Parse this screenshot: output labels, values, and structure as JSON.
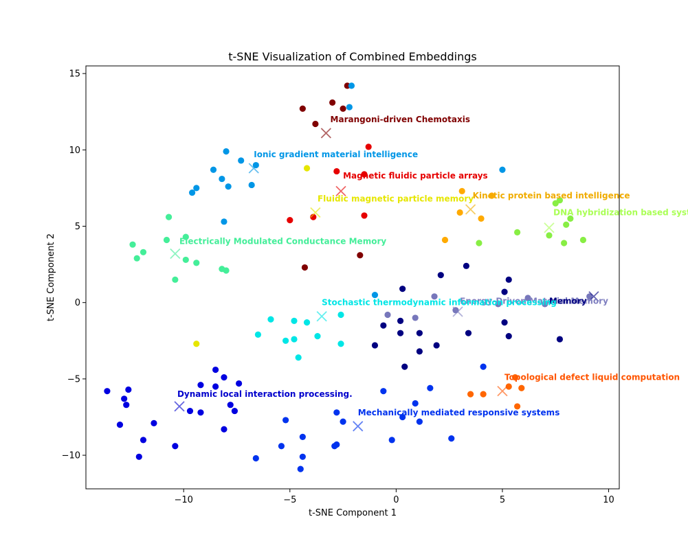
{
  "chart_data": {
    "type": "scatter",
    "title": "t-SNE Visualization of Combined Embeddings",
    "xlabel": "t-SNE Component 1",
    "ylabel": "t-SNE Component 2",
    "xlim": [
      -14.6,
      10.5
    ],
    "ylim": [
      -12.2,
      15.5
    ],
    "xticks": [
      -10,
      -5,
      0,
      5,
      10
    ],
    "yticks": [
      -10,
      -5,
      0,
      5,
      10,
      15
    ],
    "grid": false,
    "legend": "none",
    "clusters": [
      {
        "name": "Marangoni-driven Chemotaxis",
        "color": "#800000",
        "point_color": "#800000",
        "centroid": [
          -3.3,
          11.1
        ],
        "label_at": [
          -3.1,
          12.0
        ],
        "points": [
          [
            -4.4,
            12.7
          ],
          [
            -3.0,
            13.1
          ],
          [
            -2.3,
            14.2
          ],
          [
            -3.8,
            11.7
          ],
          [
            -2.5,
            12.7
          ],
          [
            -4.3,
            2.3
          ],
          [
            -1.7,
            3.1
          ]
        ]
      },
      {
        "name": "Ionic gradient material intelligence",
        "color": "#0096e6",
        "point_color": "#0096e6",
        "centroid": [
          -6.7,
          8.8
        ],
        "label_at": [
          -6.7,
          9.7
        ],
        "points": [
          [
            -2.1,
            14.2
          ],
          [
            -2.2,
            12.8
          ],
          [
            -8.0,
            9.9
          ],
          [
            -7.3,
            9.3
          ],
          [
            -6.6,
            9.0
          ],
          [
            -8.6,
            8.7
          ],
          [
            -8.2,
            8.1
          ],
          [
            -7.9,
            7.6
          ],
          [
            -9.4,
            7.5
          ],
          [
            -9.6,
            7.2
          ],
          [
            -6.8,
            7.7
          ],
          [
            -8.1,
            5.3
          ],
          [
            5.0,
            8.7
          ],
          [
            -1.0,
            0.5
          ]
        ]
      },
      {
        "name": "Magnetic fluidic particle arrays",
        "color": "#e60000",
        "point_color": "#e60000",
        "centroid": [
          -2.6,
          7.3
        ],
        "label_at": [
          -2.5,
          8.3
        ],
        "points": [
          [
            -1.3,
            10.2
          ],
          [
            -2.8,
            8.6
          ],
          [
            -1.5,
            8.4
          ],
          [
            -5.0,
            5.4
          ],
          [
            -3.9,
            5.6
          ],
          [
            -1.5,
            5.7
          ]
        ]
      },
      {
        "name": "Fluidic magnetic particle memory",
        "color": "#e6e600",
        "point_color": "#e6e600",
        "centroid": [
          -3.8,
          5.9
        ],
        "label_at": [
          -3.7,
          6.8
        ],
        "points": [
          [
            -4.2,
            8.8
          ],
          [
            -9.4,
            -2.7
          ]
        ]
      },
      {
        "name": "Kinetic protein based intelligence",
        "color": "#f0ac00",
        "point_color": "#ffaa00",
        "centroid": [
          3.5,
          6.1
        ],
        "label_at": [
          3.6,
          7.0
        ],
        "points": [
          [
            3.1,
            7.3
          ],
          [
            4.5,
            7.0
          ],
          [
            3.0,
            5.9
          ],
          [
            4.0,
            5.5
          ],
          [
            2.3,
            4.1
          ]
        ]
      },
      {
        "name": "DNA hybridization based systems",
        "color": "#aaff55",
        "point_color": "#88ee44",
        "centroid": [
          7.2,
          4.9
        ],
        "label_at": [
          7.4,
          5.9
        ],
        "points": [
          [
            7.5,
            6.5
          ],
          [
            7.7,
            6.7
          ],
          [
            8.2,
            5.5
          ],
          [
            8.0,
            5.1
          ],
          [
            7.2,
            4.4
          ],
          [
            5.7,
            4.6
          ],
          [
            7.9,
            3.9
          ],
          [
            8.8,
            4.1
          ],
          [
            3.9,
            3.9
          ]
        ]
      },
      {
        "name": "Electrically Modulated Conductance Memory",
        "color": "#44ee99",
        "point_color": "#44ee99",
        "centroid": [
          -10.4,
          3.2
        ],
        "label_at": [
          -10.2,
          4.0
        ],
        "points": [
          [
            -10.7,
            5.6
          ],
          [
            -9.9,
            4.3
          ],
          [
            -10.8,
            4.1
          ],
          [
            -12.4,
            3.8
          ],
          [
            -11.9,
            3.3
          ],
          [
            -12.2,
            2.9
          ],
          [
            -9.9,
            2.8
          ],
          [
            -9.4,
            2.6
          ],
          [
            -8.2,
            2.2
          ],
          [
            -8.0,
            2.1
          ],
          [
            -10.4,
            1.5
          ]
        ]
      },
      {
        "name": "Energy-Driven Material Memory",
        "color": "#8080c0",
        "point_color": "#7777bb",
        "centroid": [
          2.9,
          -0.6
        ],
        "label_at": [
          3.0,
          0.1
        ],
        "points": [
          [
            1.8,
            0.4
          ],
          [
            -0.4,
            -0.8
          ],
          [
            0.9,
            -1.0
          ],
          [
            2.8,
            -0.5
          ],
          [
            4.8,
            -0.1
          ],
          [
            6.2,
            0.3
          ],
          [
            7.0,
            -0.1
          ],
          [
            9.1,
            0.4
          ]
        ]
      },
      {
        "name": "Memory",
        "color": "#000080",
        "point_color": "#000080",
        "centroid": [
          9.3,
          0.4
        ],
        "label_at": [
          7.2,
          0.1
        ],
        "points": [
          [
            3.3,
            2.4
          ],
          [
            2.1,
            1.8
          ],
          [
            5.3,
            1.5
          ],
          [
            0.3,
            0.9
          ],
          [
            5.1,
            0.7
          ],
          [
            0.2,
            -1.2
          ],
          [
            -0.6,
            -1.5
          ],
          [
            5.1,
            -1.3
          ],
          [
            3.4,
            -2.0
          ],
          [
            0.2,
            -2.0
          ],
          [
            1.1,
            -2.0
          ],
          [
            5.3,
            -2.2
          ],
          [
            7.7,
            -2.4
          ],
          [
            -1.0,
            -2.8
          ],
          [
            1.9,
            -2.8
          ],
          [
            1.1,
            -3.2
          ],
          [
            0.4,
            -4.2
          ]
        ]
      },
      {
        "name": "Stochastic thermodynamic information processing",
        "color": "#00e6e6",
        "point_color": "#00e6e6",
        "centroid": [
          -3.5,
          -0.9
        ],
        "label_at": [
          -3.5,
          0.0
        ],
        "points": [
          [
            -2.6,
            -0.8
          ],
          [
            -5.9,
            -1.1
          ],
          [
            -4.8,
            -1.2
          ],
          [
            -4.2,
            -1.3
          ],
          [
            -6.5,
            -2.1
          ],
          [
            -3.7,
            -2.2
          ],
          [
            -5.2,
            -2.5
          ],
          [
            -4.8,
            -2.4
          ],
          [
            -2.6,
            -2.7
          ],
          [
            -4.6,
            -3.6
          ]
        ]
      },
      {
        "name": "Topological defect liquid computation",
        "color": "#ff5500",
        "point_color": "#ff6600",
        "centroid": [
          5.0,
          -5.8
        ],
        "label_at": [
          5.1,
          -4.9
        ],
        "points": [
          [
            5.6,
            -4.9
          ],
          [
            5.3,
            -5.5
          ],
          [
            5.9,
            -5.6
          ],
          [
            3.5,
            -6.0
          ],
          [
            4.1,
            -6.0
          ],
          [
            5.7,
            -6.8
          ]
        ]
      },
      {
        "name": "Dynamic local interaction processing.",
        "color": "#0000cc",
        "point_color": "#0000e0",
        "centroid": [
          -10.2,
          -6.8
        ],
        "label_at": [
          -10.3,
          -6.0
        ],
        "points": [
          [
            -13.6,
            -5.8
          ],
          [
            -12.6,
            -5.7
          ],
          [
            -12.8,
            -6.3
          ],
          [
            -12.7,
            -6.7
          ],
          [
            -13.0,
            -8.0
          ],
          [
            -11.4,
            -7.9
          ],
          [
            -11.9,
            -9.0
          ],
          [
            -12.1,
            -10.1
          ],
          [
            -10.4,
            -9.4
          ],
          [
            -9.2,
            -5.4
          ],
          [
            -8.5,
            -5.5
          ],
          [
            -8.5,
            -4.4
          ],
          [
            -8.1,
            -4.9
          ],
          [
            -7.4,
            -5.3
          ],
          [
            -9.7,
            -7.1
          ],
          [
            -9.2,
            -7.2
          ],
          [
            -7.8,
            -6.7
          ],
          [
            -7.6,
            -7.1
          ],
          [
            -8.1,
            -8.3
          ]
        ]
      },
      {
        "name": "Mechanically mediated responsive systems",
        "color": "#0033ee",
        "point_color": "#0033ee",
        "centroid": [
          -1.8,
          -8.1
        ],
        "label_at": [
          -1.8,
          -7.2
        ],
        "points": [
          [
            4.1,
            -4.2
          ],
          [
            1.6,
            -5.6
          ],
          [
            -0.6,
            -5.8
          ],
          [
            0.9,
            -6.6
          ],
          [
            -2.8,
            -7.2
          ],
          [
            -2.5,
            -7.8
          ],
          [
            -5.2,
            -7.7
          ],
          [
            0.3,
            -7.5
          ],
          [
            1.1,
            -7.8
          ],
          [
            -4.4,
            -8.8
          ],
          [
            -2.9,
            -9.4
          ],
          [
            -2.8,
            -9.3
          ],
          [
            -0.2,
            -9.0
          ],
          [
            2.6,
            -8.9
          ],
          [
            -5.4,
            -9.4
          ],
          [
            -4.4,
            -10.1
          ],
          [
            -6.6,
            -10.2
          ],
          [
            -4.5,
            -10.9
          ]
        ]
      }
    ]
  }
}
